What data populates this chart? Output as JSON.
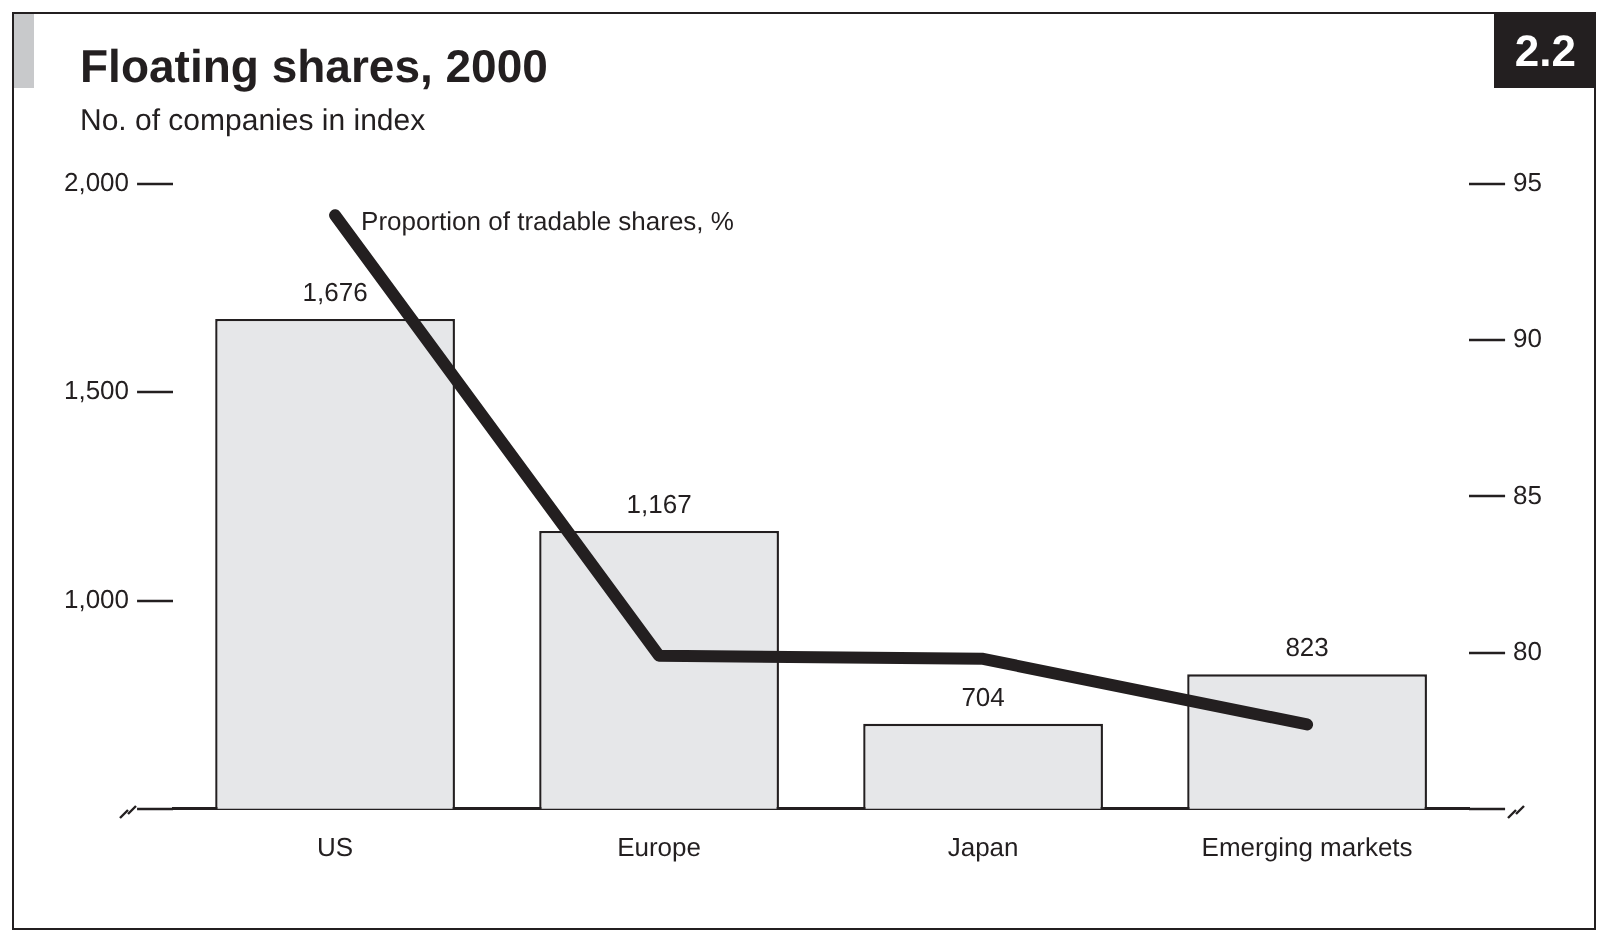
{
  "chart_data": {
    "type": "bar",
    "title": "Floating shares, 2000",
    "subtitle": "No. of companies in index",
    "annotations": [
      "2.2"
    ],
    "categories": [
      "US",
      "Europe",
      "Japan",
      "Emerging markets"
    ],
    "series": [
      {
        "color": "#e6e7e9",
        "values": [
          1676,
          1167,
          704,
          823
        ],
        "value_labels": [
          "1,676",
          "1,167",
          "704",
          "823"
        ]
      },
      {
        "type": "line",
        "name": "Proportion of tradable shares, %",
        "color": "#231f20",
        "axis": "y2",
        "values": [
          94.0,
          79.9,
          79.8,
          77.7
        ]
      }
    ],
    "ylim": [
      500,
      2000
    ],
    "yticks": [
      {
        "value": 500,
        "label": null
      },
      {
        "value": 1000,
        "label": "1,000"
      },
      {
        "value": 1500,
        "label": "1,500"
      },
      {
        "value": 2000,
        "label": "2,000"
      }
    ],
    "y2lim": [
      75,
      95
    ],
    "y2ticks": [
      {
        "value": 75,
        "label": null
      },
      80,
      85,
      90,
      95
    ],
    "grid": false,
    "legend": false,
    "marker": "none",
    "line_style": "solid"
  }
}
